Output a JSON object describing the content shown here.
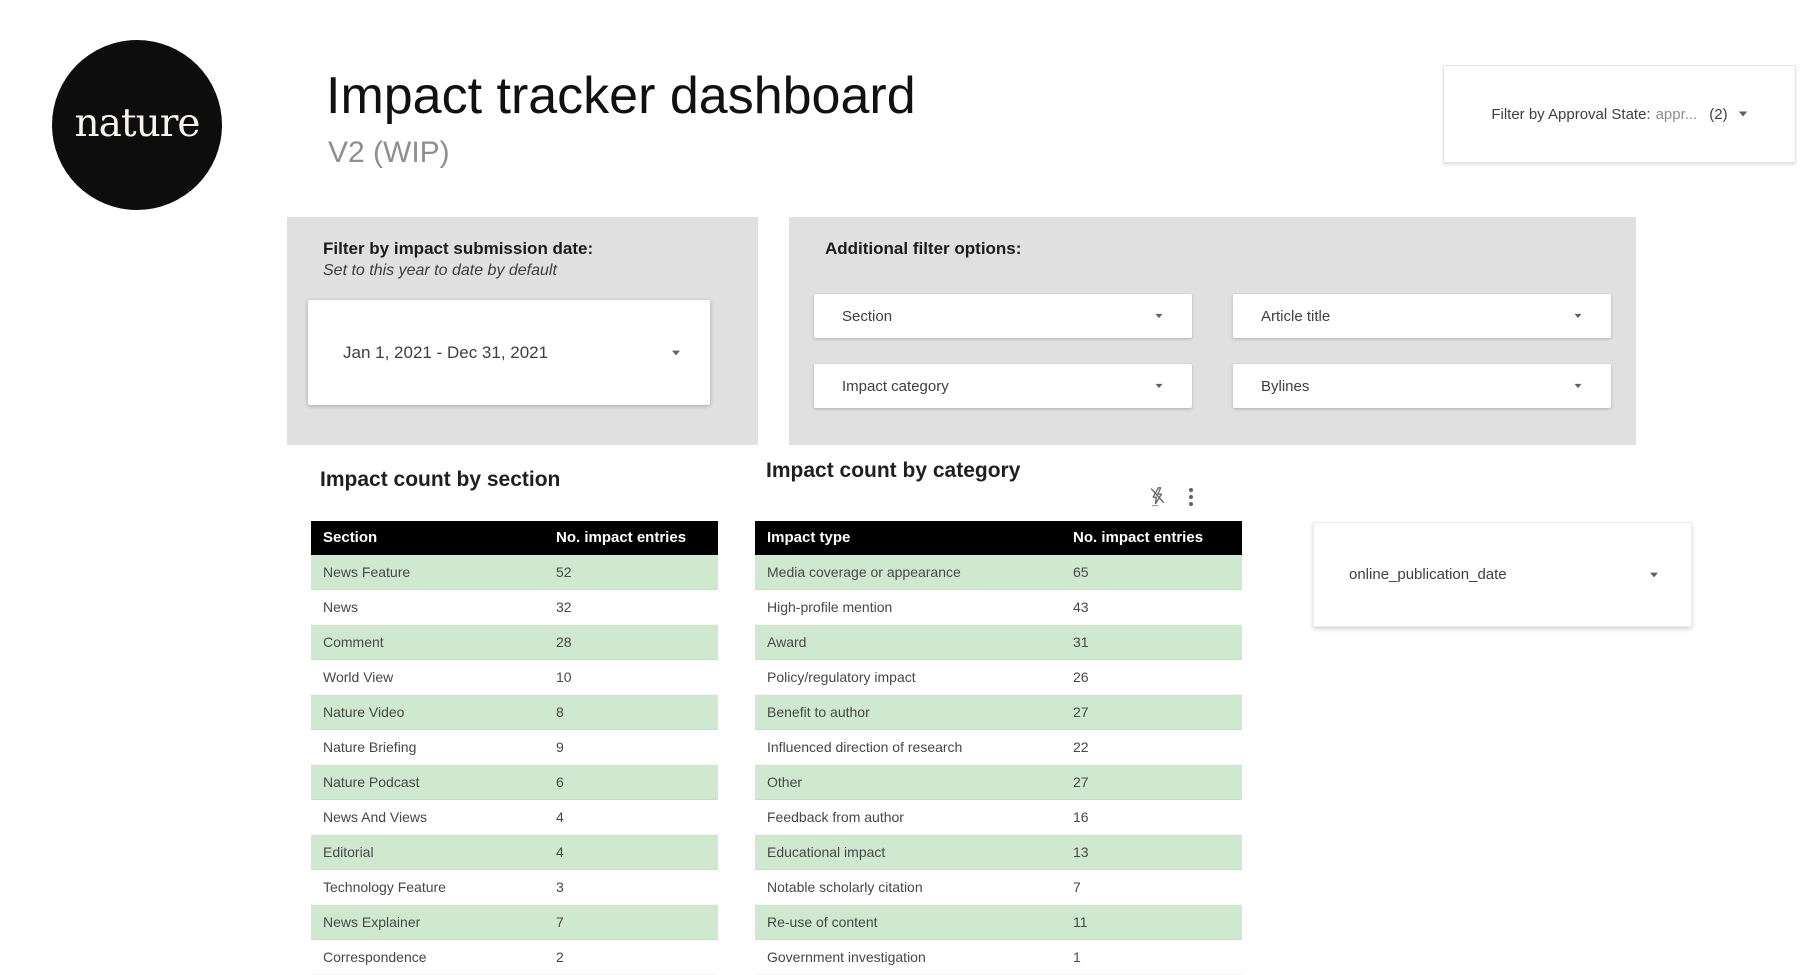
{
  "header": {
    "logo": "nature",
    "title": "Impact tracker dashboard",
    "subtitle": "V2 (WIP)",
    "approval_filter": {
      "label": "Filter by Approval State:",
      "value": "appr...",
      "count": "(2)"
    }
  },
  "date_filter": {
    "title": "Filter by impact submission date:",
    "subtitle": "Set to this year to date by default",
    "value": "Jan 1, 2021 - Dec 31, 2021"
  },
  "additional_filters": {
    "title": "Additional filter options:",
    "options": [
      {
        "label": "Section"
      },
      {
        "label": "Article title"
      },
      {
        "label": "Impact category"
      },
      {
        "label": "Bylines"
      }
    ]
  },
  "publication_date_filter": {
    "label": "online_publication_date"
  },
  "tables": [
    {
      "title": "Impact count by section",
      "columns": [
        "Section",
        "No. impact entries"
      ],
      "rows": [
        [
          "News Feature",
          52
        ],
        [
          "News",
          32
        ],
        [
          "Comment",
          28
        ],
        [
          "World View",
          10
        ],
        [
          "Nature Video",
          8
        ],
        [
          "Nature Briefing",
          9
        ],
        [
          "Nature Podcast",
          6
        ],
        [
          "News And Views",
          4
        ],
        [
          "Editorial",
          4
        ],
        [
          "Technology Feature",
          3
        ],
        [
          "News Explainer",
          7
        ],
        [
          "Correspondence",
          2
        ]
      ]
    },
    {
      "title": "Impact count by category",
      "columns": [
        "Impact type",
        "No. impact entries"
      ],
      "rows": [
        [
          "Media coverage or appearance",
          65
        ],
        [
          "High-profile mention",
          43
        ],
        [
          "Award",
          31
        ],
        [
          "Policy/regulatory impact",
          26
        ],
        [
          "Benefit to author",
          27
        ],
        [
          "Influenced direction of research",
          22
        ],
        [
          "Other",
          27
        ],
        [
          "Feedback from author",
          16
        ],
        [
          "Educational impact",
          13
        ],
        [
          "Notable scholarly citation",
          7
        ],
        [
          "Re-use of content",
          11
        ],
        [
          "Government investigation",
          1
        ]
      ]
    }
  ],
  "icons": {
    "freshness": "flash-off-icon",
    "menu": "kebab-menu-icon",
    "dropdown": "chevron-down-icon"
  },
  "colors": {
    "row_green": "#cfe9d0",
    "table_header": "#000000",
    "panel_gray": "#e0e0e0",
    "logo_black": "#0d0d0d"
  }
}
